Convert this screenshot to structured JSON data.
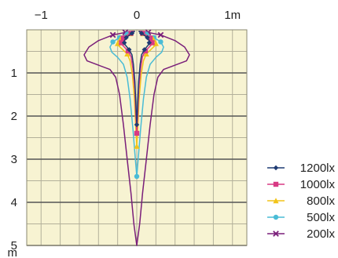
{
  "chart_data": {
    "type": "line",
    "title": "",
    "xlabel": "m",
    "ylabel": "m",
    "x_ticks": [
      {
        "value": -1,
        "label": "−1"
      },
      {
        "value": 0,
        "label": "0"
      },
      {
        "value": 1,
        "label": "1m"
      }
    ],
    "y_ticks": [
      {
        "value": 1,
        "label": "1"
      },
      {
        "value": 2,
        "label": "2"
      },
      {
        "value": 3,
        "label": "3"
      },
      {
        "value": 4,
        "label": "4"
      },
      {
        "value": 5,
        "label": "5"
      }
    ],
    "y_unit_label": "m",
    "xlim": [
      -1.15,
      1.15
    ],
    "ylim": [
      0,
      5
    ],
    "grid": true,
    "plot_background": "#f7f3d2",
    "grid_color_minor": "#b3b09a",
    "grid_color_major": "#555555",
    "legend_position": "right",
    "series": [
      {
        "name": "1200lx",
        "color": "#1f3b73",
        "marker": "diamond",
        "outline": [
          [
            0.02,
            0.03
          ],
          [
            0.05,
            0.08
          ],
          [
            0.08,
            0.13
          ],
          [
            0.11,
            0.18
          ],
          [
            0.13,
            0.25
          ],
          [
            0.13,
            0.32
          ],
          [
            0.11,
            0.38
          ],
          [
            0.08,
            0.46
          ],
          [
            0.05,
            0.58
          ],
          [
            0.035,
            0.8
          ],
          [
            0.02,
            1.2
          ],
          [
            0.01,
            1.7
          ],
          [
            0.0,
            2.2
          ],
          [
            -0.01,
            1.7
          ],
          [
            -0.02,
            1.2
          ],
          [
            -0.035,
            0.8
          ],
          [
            -0.05,
            0.58
          ],
          [
            -0.08,
            0.46
          ],
          [
            -0.11,
            0.38
          ],
          [
            -0.13,
            0.32
          ],
          [
            -0.13,
            0.25
          ],
          [
            -0.11,
            0.18
          ],
          [
            -0.08,
            0.13
          ],
          [
            -0.05,
            0.08
          ],
          [
            -0.02,
            0.03
          ]
        ],
        "markers": [
          [
            0.0,
            2.2
          ],
          [
            0.05,
            0.08
          ],
          [
            0.11,
            0.18
          ],
          [
            0.13,
            0.3
          ],
          [
            0.08,
            0.46
          ],
          [
            -0.05,
            0.08
          ],
          [
            -0.11,
            0.18
          ],
          [
            -0.13,
            0.3
          ],
          [
            -0.08,
            0.46
          ]
        ]
      },
      {
        "name": "1000lx",
        "color": "#d83a84",
        "marker": "square",
        "outline": [
          [
            0.02,
            0.03
          ],
          [
            0.06,
            0.08
          ],
          [
            0.1,
            0.13
          ],
          [
            0.14,
            0.19
          ],
          [
            0.16,
            0.26
          ],
          [
            0.16,
            0.33
          ],
          [
            0.13,
            0.4
          ],
          [
            0.09,
            0.49
          ],
          [
            0.06,
            0.62
          ],
          [
            0.04,
            0.9
          ],
          [
            0.02,
            1.4
          ],
          [
            0.01,
            2.0
          ],
          [
            0.0,
            2.4
          ],
          [
            -0.01,
            2.0
          ],
          [
            -0.02,
            1.4
          ],
          [
            -0.04,
            0.9
          ],
          [
            -0.06,
            0.62
          ],
          [
            -0.09,
            0.49
          ],
          [
            -0.13,
            0.4
          ],
          [
            -0.16,
            0.33
          ],
          [
            -0.16,
            0.26
          ],
          [
            -0.14,
            0.19
          ],
          [
            -0.1,
            0.13
          ],
          [
            -0.06,
            0.08
          ],
          [
            -0.02,
            0.03
          ]
        ],
        "markers": [
          [
            0.0,
            2.4
          ],
          [
            0.06,
            0.08
          ],
          [
            0.14,
            0.19
          ],
          [
            0.16,
            0.3
          ],
          [
            0.09,
            0.49
          ],
          [
            -0.06,
            0.08
          ],
          [
            -0.14,
            0.19
          ],
          [
            -0.16,
            0.3
          ],
          [
            -0.09,
            0.49
          ]
        ]
      },
      {
        "name": "800lx",
        "color": "#f2c418",
        "marker": "triangle",
        "outline": [
          [
            0.02,
            0.03
          ],
          [
            0.07,
            0.09
          ],
          [
            0.12,
            0.15
          ],
          [
            0.17,
            0.21
          ],
          [
            0.2,
            0.29
          ],
          [
            0.19,
            0.37
          ],
          [
            0.15,
            0.45
          ],
          [
            0.1,
            0.56
          ],
          [
            0.07,
            0.72
          ],
          [
            0.045,
            1.05
          ],
          [
            0.025,
            1.6
          ],
          [
            0.01,
            2.3
          ],
          [
            0.0,
            2.7
          ],
          [
            -0.01,
            2.3
          ],
          [
            -0.025,
            1.6
          ],
          [
            -0.045,
            1.05
          ],
          [
            -0.07,
            0.72
          ],
          [
            -0.1,
            0.56
          ],
          [
            -0.15,
            0.45
          ],
          [
            -0.19,
            0.37
          ],
          [
            -0.2,
            0.29
          ],
          [
            -0.17,
            0.21
          ],
          [
            -0.12,
            0.15
          ],
          [
            -0.07,
            0.09
          ],
          [
            -0.02,
            0.03
          ]
        ],
        "markers": [
          [
            0.0,
            2.7
          ],
          [
            0.07,
            0.09
          ],
          [
            0.17,
            0.21
          ],
          [
            0.2,
            0.32
          ],
          [
            0.1,
            0.56
          ],
          [
            -0.07,
            0.09
          ],
          [
            -0.17,
            0.21
          ],
          [
            -0.2,
            0.32
          ],
          [
            -0.1,
            0.56
          ]
        ]
      },
      {
        "name": "500lx",
        "color": "#49bcd6",
        "marker": "dot",
        "outline": [
          [
            0.02,
            0.03
          ],
          [
            0.1,
            0.1
          ],
          [
            0.18,
            0.18
          ],
          [
            0.25,
            0.28
          ],
          [
            0.28,
            0.4
          ],
          [
            0.26,
            0.52
          ],
          [
            0.2,
            0.64
          ],
          [
            0.14,
            0.8
          ],
          [
            0.1,
            1.1
          ],
          [
            0.07,
            1.6
          ],
          [
            0.04,
            2.3
          ],
          [
            0.015,
            3.0
          ],
          [
            0.0,
            3.4
          ],
          [
            -0.015,
            3.0
          ],
          [
            -0.04,
            2.3
          ],
          [
            -0.07,
            1.6
          ],
          [
            -0.1,
            1.1
          ],
          [
            -0.14,
            0.8
          ],
          [
            -0.2,
            0.64
          ],
          [
            -0.26,
            0.52
          ],
          [
            -0.28,
            0.4
          ],
          [
            -0.25,
            0.28
          ],
          [
            -0.18,
            0.18
          ],
          [
            -0.1,
            0.1
          ],
          [
            -0.02,
            0.03
          ]
        ],
        "markers": [
          [
            0.0,
            3.4
          ],
          [
            0.1,
            0.1
          ],
          [
            0.18,
            0.18
          ],
          [
            0.25,
            0.28
          ],
          [
            -0.1,
            0.1
          ],
          [
            -0.18,
            0.18
          ],
          [
            -0.25,
            0.28
          ]
        ]
      },
      {
        "name": "200lx",
        "color": "#7a1f7a",
        "marker": "cross",
        "outline": [
          [
            0.03,
            0.03
          ],
          [
            0.12,
            0.06
          ],
          [
            0.25,
            0.12
          ],
          [
            0.4,
            0.25
          ],
          [
            0.5,
            0.4
          ],
          [
            0.55,
            0.58
          ],
          [
            0.52,
            0.72
          ],
          [
            0.4,
            0.82
          ],
          [
            0.28,
            0.92
          ],
          [
            0.22,
            1.1
          ],
          [
            0.18,
            1.5
          ],
          [
            0.14,
            2.2
          ],
          [
            0.1,
            3.0
          ],
          [
            0.06,
            3.8
          ],
          [
            0.03,
            4.5
          ],
          [
            0.0,
            5.0
          ],
          [
            -0.03,
            4.5
          ],
          [
            -0.06,
            3.8
          ],
          [
            -0.1,
            3.0
          ],
          [
            -0.14,
            2.2
          ],
          [
            -0.18,
            1.5
          ],
          [
            -0.22,
            1.1
          ],
          [
            -0.28,
            0.92
          ],
          [
            -0.4,
            0.82
          ],
          [
            -0.52,
            0.72
          ],
          [
            -0.55,
            0.58
          ],
          [
            -0.5,
            0.4
          ],
          [
            -0.4,
            0.25
          ],
          [
            -0.25,
            0.12
          ],
          [
            -0.12,
            0.06
          ],
          [
            -0.03,
            0.03
          ]
        ],
        "markers": [
          [
            0.12,
            0.06
          ],
          [
            0.25,
            0.12
          ],
          [
            -0.12,
            0.06
          ],
          [
            -0.25,
            0.12
          ]
        ]
      }
    ]
  }
}
